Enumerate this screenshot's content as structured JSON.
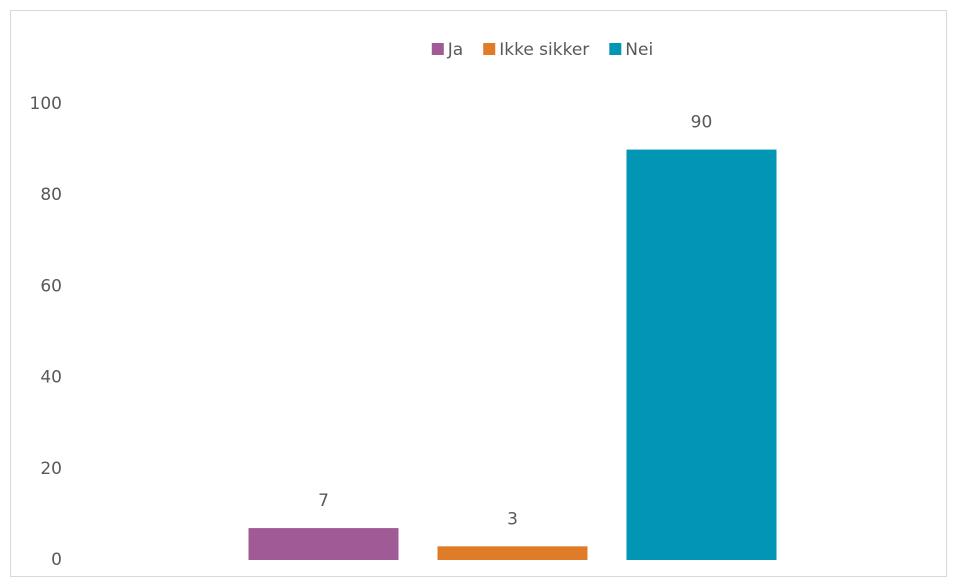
{
  "chart_data": {
    "type": "bar",
    "categories": [
      null
    ],
    "series": [
      {
        "name": "Ja",
        "color": "#a05a96",
        "values": [
          7
        ]
      },
      {
        "name": "Ikke sikker",
        "color": "#e07b28",
        "values": [
          3
        ]
      },
      {
        "name": "Nei",
        "color": "#0096b4",
        "values": [
          90
        ]
      }
    ],
    "ylim": [
      0,
      100
    ],
    "yticks": [
      0,
      20,
      40,
      60,
      80,
      100
    ],
    "grid": false,
    "legend": "top"
  }
}
